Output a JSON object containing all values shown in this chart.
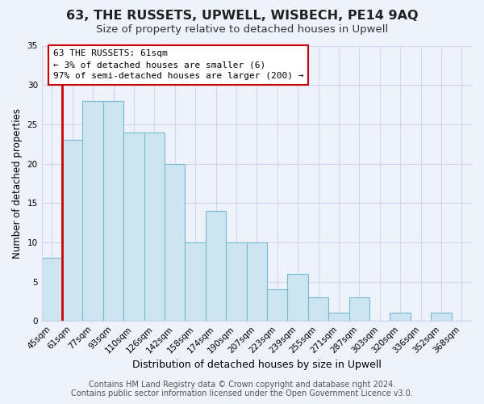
{
  "title": "63, THE RUSSETS, UPWELL, WISBECH, PE14 9AQ",
  "subtitle": "Size of property relative to detached houses in Upwell",
  "xlabel": "Distribution of detached houses by size in Upwell",
  "ylabel": "Number of detached properties",
  "bar_labels": [
    "45sqm",
    "61sqm",
    "77sqm",
    "93sqm",
    "110sqm",
    "126sqm",
    "142sqm",
    "158sqm",
    "174sqm",
    "190sqm",
    "207sqm",
    "223sqm",
    "239sqm",
    "255sqm",
    "271sqm",
    "287sqm",
    "303sqm",
    "320sqm",
    "336sqm",
    "352sqm",
    "368sqm"
  ],
  "bar_values": [
    8,
    23,
    28,
    28,
    24,
    24,
    20,
    10,
    14,
    10,
    10,
    4,
    6,
    3,
    1,
    3,
    0,
    1,
    0,
    1,
    0
  ],
  "bar_fill_color": "#cce5f0",
  "bar_edge_color": "#7ab8d4",
  "highlight_line_color": "#cc0000",
  "annotation_text": "63 THE RUSSETS: 61sqm\n← 3% of detached houses are smaller (6)\n97% of semi-detached houses are larger (200) →",
  "annotation_box_edge_color": "#cc0000",
  "annotation_box_face_color": "#ffffff",
  "ylim": [
    0,
    35
  ],
  "yticks": [
    0,
    5,
    10,
    15,
    20,
    25,
    30,
    35
  ],
  "footer1": "Contains HM Land Registry data © Crown copyright and database right 2024.",
  "footer2": "Contains public sector information licensed under the Open Government Licence v3.0.",
  "background_color": "#edf2fb",
  "grid_color": "#d0d8ee",
  "title_fontsize": 11.5,
  "subtitle_fontsize": 9.5,
  "xlabel_fontsize": 9,
  "ylabel_fontsize": 8.5,
  "tick_fontsize": 7.5,
  "annotation_fontsize": 8,
  "footer_fontsize": 7
}
